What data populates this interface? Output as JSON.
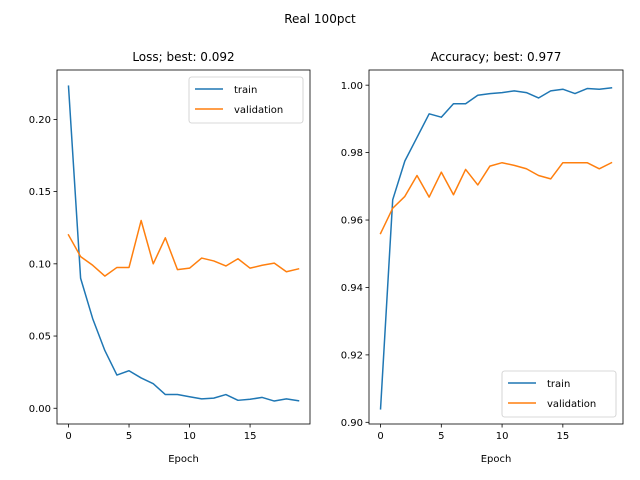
{
  "suptitle": "Real 100pct",
  "chart_data": [
    {
      "type": "line",
      "title": "Loss; best: 0.092",
      "xlabel": "Epoch",
      "ylabel": "",
      "xlim": [
        -0.95,
        19.95
      ],
      "ylim": [
        -0.0109,
        0.2342
      ],
      "xticks": [
        0,
        5,
        10,
        15
      ],
      "yticks": [
        0.0,
        0.05,
        0.1,
        0.15,
        0.2
      ],
      "ytick_labels": [
        "0.00",
        "0.05",
        "0.10",
        "0.15",
        "0.20"
      ],
      "legend": "top-right",
      "grid": false,
      "x": [
        0,
        1,
        2,
        3,
        4,
        5,
        6,
        7,
        8,
        9,
        10,
        11,
        12,
        13,
        14,
        15,
        16,
        17,
        18,
        19
      ],
      "series": [
        {
          "name": "train",
          "color": "#1f77b4",
          "values": [
            0.223,
            0.09,
            0.062,
            0.04,
            0.023,
            0.026,
            0.021,
            0.017,
            0.0095,
            0.0095,
            0.008,
            0.0065,
            0.007,
            0.0095,
            0.0055,
            0.0062,
            0.0075,
            0.005,
            0.0065,
            0.0052
          ]
        },
        {
          "name": "validation",
          "color": "#ff7f0e",
          "values": [
            0.12,
            0.105,
            0.099,
            0.0915,
            0.0975,
            0.0975,
            0.13,
            0.1,
            0.118,
            0.096,
            0.097,
            0.104,
            0.102,
            0.0985,
            0.1035,
            0.097,
            0.099,
            0.1005,
            0.0945,
            0.0965
          ]
        }
      ]
    },
    {
      "type": "line",
      "title": "Accuracy; best: 0.977",
      "xlabel": "Epoch",
      "ylabel": "",
      "xlim": [
        -0.95,
        19.95
      ],
      "ylim": [
        0.8995,
        1.0045
      ],
      "xticks": [
        0,
        5,
        10,
        15
      ],
      "yticks": [
        0.9,
        0.92,
        0.94,
        0.96,
        0.98,
        1.0
      ],
      "ytick_labels": [
        "0.90",
        "0.92",
        "0.94",
        "0.96",
        "0.98",
        "1.00"
      ],
      "legend": "bottom-right",
      "grid": false,
      "x": [
        0,
        1,
        2,
        3,
        4,
        5,
        6,
        7,
        8,
        9,
        10,
        11,
        12,
        13,
        14,
        15,
        16,
        17,
        18,
        19
      ],
      "series": [
        {
          "name": "train",
          "color": "#1f77b4",
          "values": [
            0.904,
            0.966,
            0.9775,
            0.9845,
            0.9915,
            0.9905,
            0.9945,
            0.9945,
            0.997,
            0.9975,
            0.9978,
            0.9983,
            0.9978,
            0.9962,
            0.9983,
            0.9988,
            0.9975,
            0.999,
            0.9988,
            0.9992
          ]
        },
        {
          "name": "validation",
          "color": "#ff7f0e",
          "values": [
            0.956,
            0.9635,
            0.967,
            0.9732,
            0.9668,
            0.9742,
            0.9675,
            0.975,
            0.9704,
            0.976,
            0.977,
            0.9762,
            0.9752,
            0.9732,
            0.9722,
            0.977,
            0.977,
            0.977,
            0.9752,
            0.977
          ]
        }
      ]
    }
  ]
}
